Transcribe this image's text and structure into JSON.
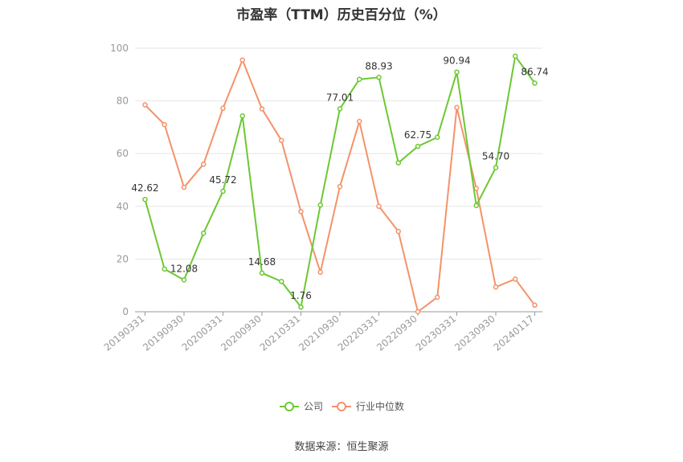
{
  "title": "市盈率（TTM）历史百分位（%）",
  "source": "数据来源：恒生聚源",
  "chart_data": {
    "type": "line",
    "x": [
      "20190331",
      "20190630",
      "20190930",
      "20191231",
      "20200331",
      "20200630",
      "20200930",
      "20201231",
      "20210331",
      "20210630",
      "20210930",
      "20211231",
      "20220331",
      "20220630",
      "20220930",
      "20221231",
      "20230331",
      "20230630",
      "20230930",
      "20231231",
      "20240117"
    ],
    "x_tick_labels": [
      "20190331",
      "20190930",
      "20200331",
      "20200930",
      "20210331",
      "20210930",
      "20220331",
      "20220930",
      "20230331",
      "20230930",
      "20240117"
    ],
    "ylim": [
      0,
      100
    ],
    "y_ticks": [
      0,
      20,
      40,
      60,
      80,
      100
    ],
    "grid": true,
    "legend_position": "bottom",
    "series": [
      {
        "name": "公司",
        "color": "#6cc832",
        "values": [
          42.62,
          16.2,
          12.08,
          29.8,
          45.72,
          74.3,
          14.68,
          11.5,
          1.76,
          40.5,
          77.01,
          88.2,
          88.93,
          56.5,
          62.75,
          66.2,
          90.94,
          40.3,
          54.7,
          97.0,
          86.74
        ],
        "data_labels": [
          {
            "i": 0,
            "text": "42.62"
          },
          {
            "i": 2,
            "text": "12.08"
          },
          {
            "i": 4,
            "text": "45.72"
          },
          {
            "i": 6,
            "text": "14.68"
          },
          {
            "i": 8,
            "text": "1.76"
          },
          {
            "i": 10,
            "text": "77.01"
          },
          {
            "i": 12,
            "text": "88.93"
          },
          {
            "i": 14,
            "text": "62.75"
          },
          {
            "i": 16,
            "text": "90.94"
          },
          {
            "i": 18,
            "text": "54.70"
          },
          {
            "i": 20,
            "text": "86.74"
          }
        ]
      },
      {
        "name": "行业中位数",
        "color": "#f4926a",
        "values": [
          78.5,
          71.0,
          47.2,
          56.0,
          77.2,
          95.5,
          77.0,
          65.0,
          38.0,
          15.0,
          47.5,
          72.2,
          40.0,
          30.5,
          0.0,
          5.5,
          77.5,
          46.8,
          9.4,
          12.4,
          2.5
        ]
      }
    ]
  }
}
